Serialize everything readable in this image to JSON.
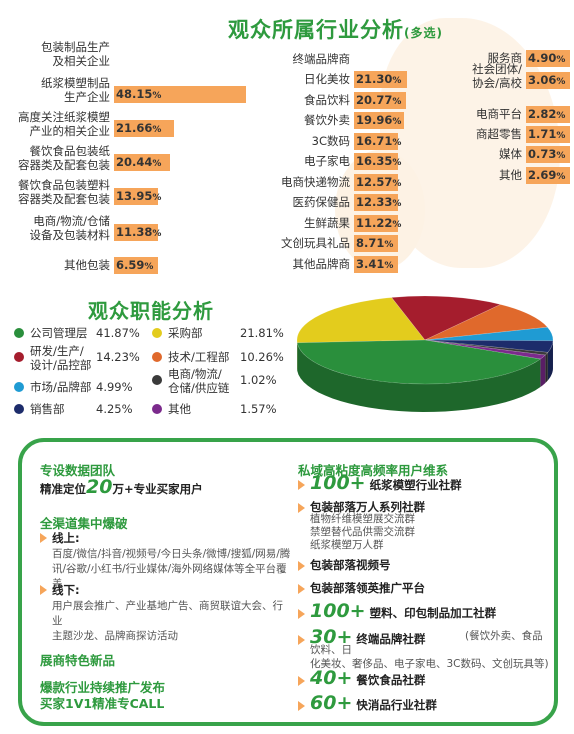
{
  "industry": {
    "title": "观众所属行业分析",
    "title_note": "(多选)",
    "col1": [
      {
        "label": "包装制品生产\n及相关企业",
        "value": "",
        "pct": 0
      },
      {
        "label": "纸浆模塑制品\n生产企业",
        "value": "48.15",
        "pct": 48.15
      },
      {
        "label": "高度关注纸浆模塑\n产业的相关企业",
        "value": "21.66",
        "pct": 21.66
      },
      {
        "label": "餐饮食品包装纸\n容器类及配套包装",
        "value": "20.44",
        "pct": 20.44
      },
      {
        "label": "餐饮食品包装塑料\n容器类及配套包装",
        "value": "13.95",
        "pct": 13.95
      },
      {
        "label": "电商/物流/仓储\n设备及包装材料",
        "value": "11.38",
        "pct": 11.38
      },
      {
        "label": "其他包装",
        "value": "6.59",
        "pct": 6.59
      }
    ],
    "col2": [
      {
        "label": "终端品牌商",
        "value": "",
        "pct": 0
      },
      {
        "label": "日化美妆",
        "value": "21.30",
        "pct": 21.3
      },
      {
        "label": "食品饮料",
        "value": "20.77",
        "pct": 20.77
      },
      {
        "label": "餐饮外卖",
        "value": "19.96",
        "pct": 19.96
      },
      {
        "label": "3C数码",
        "value": "16.71",
        "pct": 16.71
      },
      {
        "label": "电子家电",
        "value": "16.35",
        "pct": 16.35
      },
      {
        "label": "电商快递物流",
        "value": "12.57",
        "pct": 12.57
      },
      {
        "label": "医药保健品",
        "value": "12.33",
        "pct": 12.33
      },
      {
        "label": "生鲜蔬果",
        "value": "11.22",
        "pct": 11.22
      },
      {
        "label": "文创玩具礼品",
        "value": "8.71",
        "pct": 8.71
      },
      {
        "label": "其他品牌商",
        "value": "3.41",
        "pct": 3.41
      }
    ],
    "col3": [
      {
        "label": "服务商",
        "value": "4.90",
        "pct": 4.9
      },
      {
        "label": "社会团体/\n协会/高校",
        "value": "3.06",
        "pct": 3.06
      },
      {
        "label": "电商平台",
        "value": "2.82",
        "pct": 2.82
      },
      {
        "label": "商超零售",
        "value": "1.71",
        "pct": 1.71
      },
      {
        "label": "媒体",
        "value": "0.73",
        "pct": 0.73
      },
      {
        "label": "其他",
        "value": "2.69",
        "pct": 2.69
      }
    ],
    "pct_sign": "%"
  },
  "chart_data": {
    "type": "pie",
    "title": "观众职能分析",
    "slices": [
      {
        "name": "公司管理层",
        "value": 41.87,
        "label": "41.87%",
        "color": "#2a8f3c"
      },
      {
        "name": "采购部",
        "value": 21.81,
        "label": "21.81%",
        "color": "#e3cc1d"
      },
      {
        "name": "研发/生产/\n设计/品控部",
        "value": 14.23,
        "label": "14.23%",
        "color": "#a51d2d"
      },
      {
        "name": "技术/工程部",
        "value": 10.26,
        "label": "10.26%",
        "color": "#e0692c"
      },
      {
        "name": "市场/品牌部",
        "value": 4.99,
        "label": "4.99%",
        "color": "#1f9bd3"
      },
      {
        "name": "电商/物流/\n仓储/供应链",
        "value": 1.02,
        "label": "1.02%",
        "color": "#3a3a3a"
      },
      {
        "name": "销售部",
        "value": 4.25,
        "label": "4.25%",
        "color": "#1d2c6b"
      },
      {
        "name": "其他",
        "value": 1.57,
        "label": "1.57%",
        "color": "#7b2a8c"
      }
    ]
  },
  "promo": {
    "left": {
      "h1": "专设数据团队",
      "l1a": "精准定位",
      "l1num": "20",
      "l1b": "万+专业买家用户",
      "h2": "全渠道集中爆破",
      "online": "线上:",
      "online_text": "百度/微信/抖音/视频号/今日头条/微博/搜狐/网易/腾\n讯/谷歌/小红书/行业媒体/海外网络媒体等全平台覆盖",
      "offline": "线下:",
      "offline_text": "用户展会推广、产业基地广告、商贸联谊大会、行业\n主题沙龙、品牌商探访活动",
      "h3": "展商特色新品",
      "h4a": "爆款行业持续推广发布",
      "h4b": "买家1V1精准专CALL"
    },
    "right": {
      "head": "私域高粘度高频率用户维系",
      "r1num": "100+",
      "r1": "纸浆模塑行业社群",
      "r2": "包装部落万人系列社群",
      "r2sub": "植物纤维模塑展交流群\n禁塑替代品供需交流群\n纸浆模塑万人群",
      "r3": "包装部落视频号",
      "r4": "包装部落领英推广平台",
      "r5num": "100+",
      "r5": "塑料、印包制品加工社群",
      "r6num": "30+",
      "r6": "终端品牌社群",
      "r6sub": "(餐饮外卖、食品饮料、日\n化美妆、奢侈品、电子家电、3C数码、文创玩具等)",
      "r7num": "40+",
      "r7": "餐饮食品社群",
      "r8num": "60+",
      "r8": "快消品行业社群"
    }
  }
}
